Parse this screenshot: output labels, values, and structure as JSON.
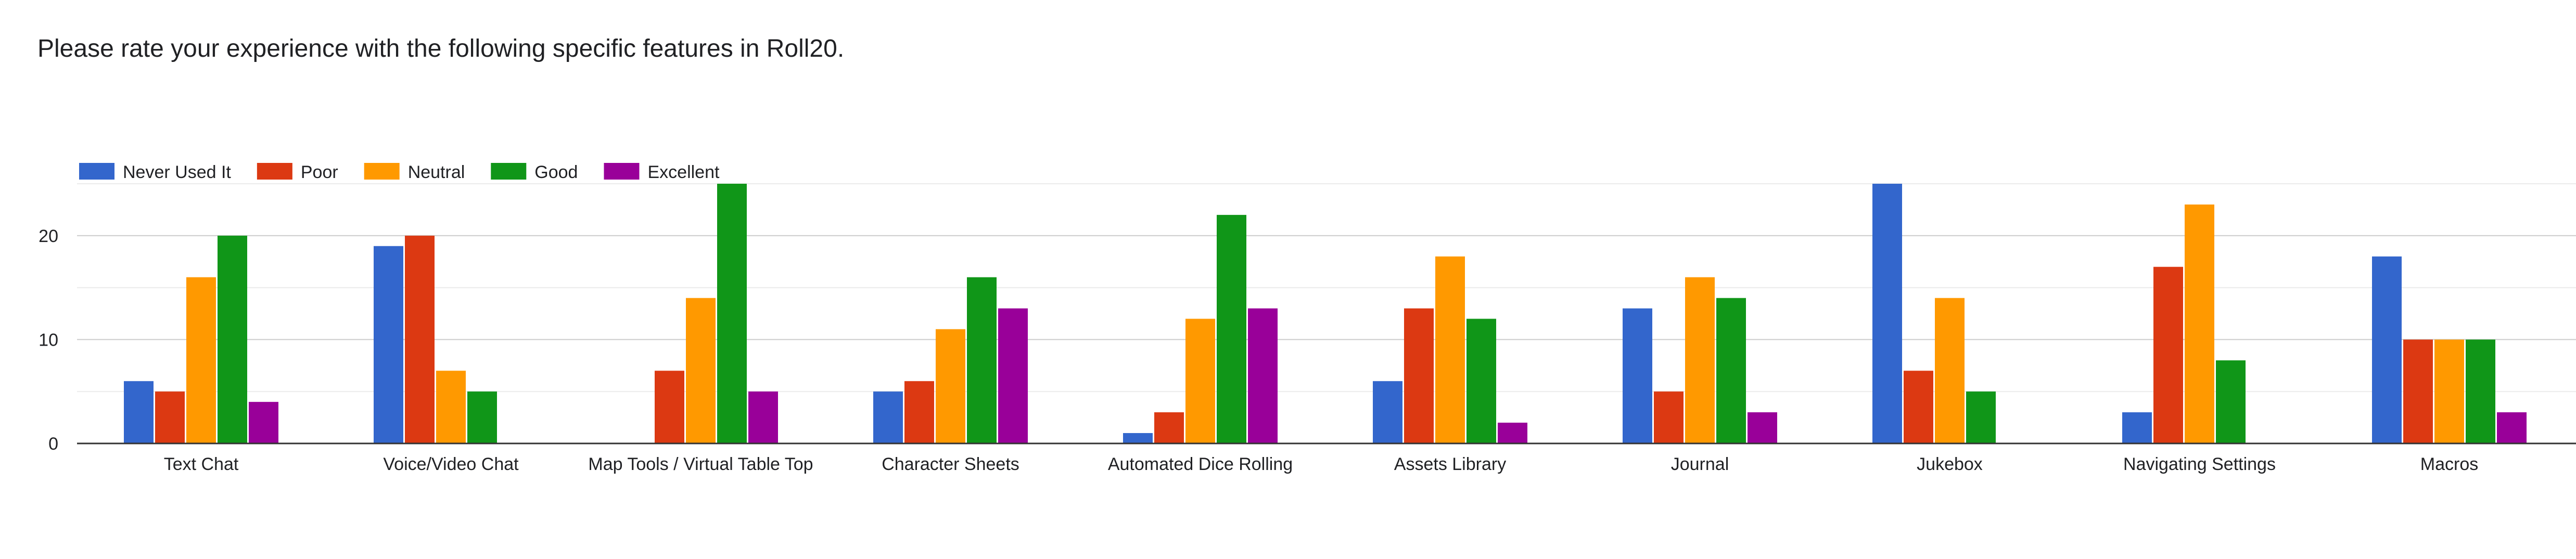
{
  "chart_data": {
    "type": "bar",
    "title": "Please rate your experience with the following specific features in Roll20.",
    "xlabel": "",
    "ylabel": "",
    "ylim": [
      0,
      25
    ],
    "yticks": [
      0,
      10,
      20
    ],
    "grid": true,
    "legend_position": "top-left",
    "categories": [
      "Text Chat",
      "Voice/Video Chat",
      "Map Tools / Virtual Table Top",
      "Character Sheets",
      "Automated Dice Rolling",
      "Assets Library",
      "Journal",
      "Jukebox",
      "Navigating Settings",
      "Macros"
    ],
    "series": [
      {
        "name": "Never Used It",
        "color": "#3366cc",
        "values": [
          6,
          19,
          0,
          5,
          1,
          6,
          13,
          25,
          3,
          18
        ]
      },
      {
        "name": "Poor",
        "color": "#dc3912",
        "values": [
          5,
          20,
          7,
          6,
          3,
          13,
          5,
          7,
          17,
          10
        ]
      },
      {
        "name": "Neutral",
        "color": "#ff9900",
        "values": [
          16,
          7,
          14,
          11,
          12,
          18,
          16,
          14,
          23,
          10
        ]
      },
      {
        "name": "Good",
        "color": "#109618",
        "values": [
          20,
          5,
          25,
          16,
          22,
          12,
          14,
          5,
          8,
          10
        ]
      },
      {
        "name": "Excellent",
        "color": "#990099",
        "values": [
          4,
          0,
          5,
          13,
          13,
          2,
          3,
          0,
          0,
          3
        ]
      }
    ]
  }
}
